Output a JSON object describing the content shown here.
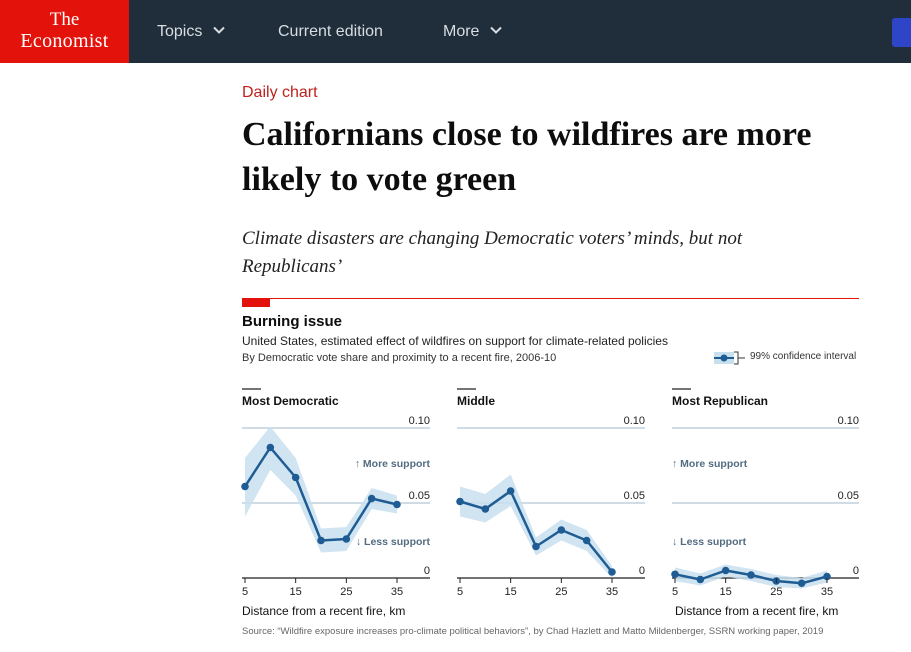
{
  "nav": {
    "logo_line1": "The",
    "logo_line2": "Economist",
    "items": [
      {
        "label": "Topics",
        "has_dropdown": true
      },
      {
        "label": "Current edition",
        "has_dropdown": false
      },
      {
        "label": "More",
        "has_dropdown": true
      }
    ]
  },
  "article": {
    "kicker": "Daily chart",
    "headline": "Californians close to wildfires are more likely to vote green",
    "standfirst": "Climate disasters are changing Democratic voters’ minds, but not Republicans’"
  },
  "colors": {
    "brand_red": "#e3120b",
    "navbar": "#1f2e3a",
    "line": "#1f5c94",
    "band": "#c8dfee",
    "annotation": "#536c82"
  },
  "chart_data": {
    "type": "line",
    "title": "Burning issue",
    "subtitle": "United States, estimated effect of wildfires on support for climate-related policies",
    "subtitle2": "By Democratic vote share and proximity to a recent fire, 2006-10",
    "legend": "99% confidence interval",
    "xlabel": "Distance from a recent fire, km",
    "x": [
      5,
      10,
      15,
      20,
      25,
      30,
      35
    ],
    "xticks": [
      "5",
      "15",
      "25",
      "35"
    ],
    "yticks": [
      "0.10",
      "0.05",
      "0"
    ],
    "ylim": [
      0,
      0.1
    ],
    "annotations": {
      "up": "↑ More support",
      "down": "↓ Less support"
    },
    "panels": [
      {
        "name": "Most Democratic",
        "values": [
          0.061,
          0.087,
          0.067,
          0.025,
          0.026,
          0.053,
          0.049
        ],
        "lower": [
          0.041,
          0.072,
          0.055,
          0.017,
          0.018,
          0.046,
          0.043
        ],
        "upper": [
          0.08,
          0.101,
          0.08,
          0.033,
          0.034,
          0.06,
          0.055
        ]
      },
      {
        "name": "Middle",
        "values": [
          0.051,
          0.046,
          0.058,
          0.021,
          0.032,
          0.025,
          0.004
        ],
        "lower": [
          0.041,
          0.037,
          0.048,
          0.015,
          0.025,
          0.018,
          0.0
        ],
        "upper": [
          0.061,
          0.056,
          0.069,
          0.027,
          0.039,
          0.032,
          0.008
        ]
      },
      {
        "name": "Most Republican",
        "values": [
          0.0025,
          -0.001,
          0.005,
          0.002,
          -0.002,
          -0.0035,
          0.001
        ],
        "lower": [
          -0.002,
          -0.005,
          0.001,
          -0.002,
          -0.006,
          -0.007,
          -0.003
        ],
        "upper": [
          0.007,
          0.003,
          0.009,
          0.006,
          0.002,
          0.0,
          0.005
        ]
      }
    ],
    "source": "Source: “Wildfire exposure increases pro-climate political behaviors”, by Chad Hazlett and Matto Mildenberger, SSRN working paper, 2019"
  }
}
